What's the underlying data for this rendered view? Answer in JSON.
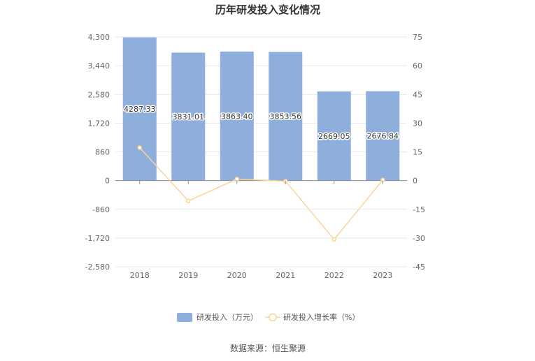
{
  "chart_data": {
    "type": "bar",
    "title": "历年研发投入变化情况",
    "categories": [
      "2018",
      "2019",
      "2020",
      "2021",
      "2022",
      "2023"
    ],
    "series": [
      {
        "name": "研发投入（万元）",
        "type": "bar",
        "axis": "left",
        "values": [
          4287.33,
          3831.01,
          3863.4,
          3853.56,
          2669.05,
          2676.84
        ],
        "labels": [
          "4287.33",
          "3831.01",
          "3863.40",
          "3853.56",
          "2669.05",
          "2676.84"
        ],
        "color": "#8eaedb"
      },
      {
        "name": "研发投入增长率（%）",
        "type": "line",
        "axis": "right",
        "values": [
          17.2,
          -10.6,
          0.8,
          -0.3,
          -30.7,
          0.3
        ],
        "color": "#fbd49a"
      }
    ],
    "y_left": {
      "ylim": [
        -2580,
        4300
      ],
      "ticks": [
        -2580,
        -1720,
        -860,
        0,
        860,
        1720,
        2580,
        3440,
        4300
      ],
      "tick_labels": [
        "-2,580",
        "-1,720",
        "-860",
        "0",
        "860",
        "1,720",
        "2,580",
        "3,440",
        "4,300"
      ]
    },
    "y_right": {
      "ylim": [
        -45,
        75
      ],
      "ticks": [
        -45,
        -30,
        -15,
        0,
        15,
        30,
        45,
        60,
        75
      ],
      "tick_labels": [
        "-45",
        "-30",
        "-15",
        "0",
        "15",
        "30",
        "45",
        "60",
        "75"
      ]
    },
    "grid": true,
    "legend_position": "bottom-center",
    "source": "数据来源：恒生聚源"
  }
}
